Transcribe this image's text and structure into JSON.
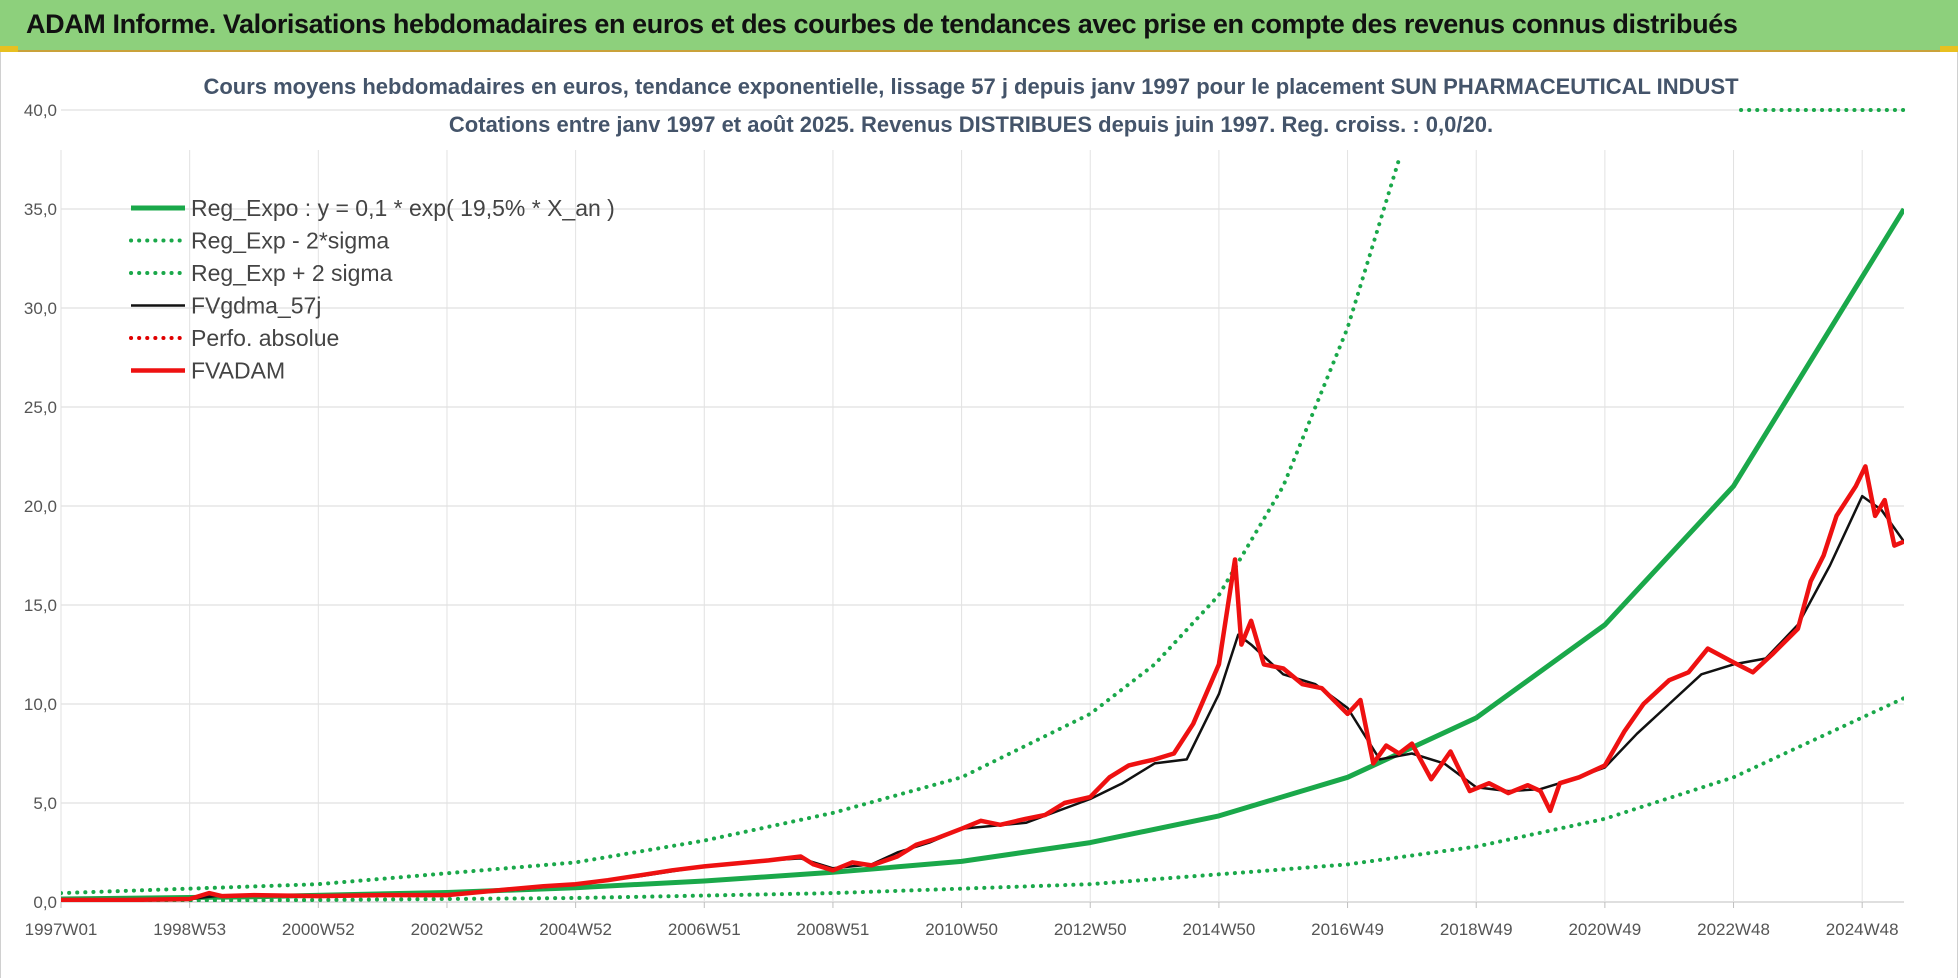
{
  "banner": {
    "title": "ADAM Informe. Valorisations hebdomadaires en euros et des courbes de tendances avec prise en compte des revenus connus distribués"
  },
  "colors": {
    "banner_bg": "#8dd07c",
    "reg_expo": "#1aa84a",
    "reg_sigma": "#1aa84a",
    "fvgdma": "#111111",
    "perfo": "#e00000",
    "fvadam": "#ee1111"
  },
  "chart_data": {
    "type": "line",
    "title": "Cours moyens hebdomadaires en euros, tendance exponentielle, lissage 57 j depuis janv 1997 pour le placement SUN PHARMACEUTICAL INDUST",
    "subtitle": "Cotations entre janv 1997 et août 2025. Revenus DISTRIBUES depuis juin 1997. Reg. croiss. : 0,0/20.",
    "xlabel": "",
    "ylabel": "",
    "ylim": [
      0,
      40
    ],
    "xlim": [
      1997.0,
      2025.65
    ],
    "grid": true,
    "legend_position": "top-left",
    "y_ticks": [
      "0,0",
      "5,0",
      "10,0",
      "15,0",
      "20,0",
      "25,0",
      "30,0",
      "35,0",
      "40,0"
    ],
    "x_ticks": [
      "1997W01",
      "1998W53",
      "2000W52",
      "2002W52",
      "2004W52",
      "2006W51",
      "2008W51",
      "2010W50",
      "2012W50",
      "2014W50",
      "2016W49",
      "2018W49",
      "2020W49",
      "2022W48",
      "2024W48"
    ],
    "x_tick_years": [
      1997.0,
      1999.0,
      2001.0,
      2003.0,
      2005.0,
      2007.0,
      2009.0,
      2011.0,
      2013.0,
      2015.0,
      2017.0,
      2019.0,
      2021.0,
      2023.0,
      2025.0
    ],
    "series": [
      {
        "name": "Reg_Expo : y = 0,1 * exp( 19,5% *  X_an )",
        "style": "solid-thick",
        "color": "#1aa84a",
        "x": [
          1997,
          2000,
          2003,
          2005,
          2007,
          2009,
          2011,
          2013,
          2015,
          2017,
          2019,
          2021,
          2023,
          2025.65
        ],
        "y": [
          0.15,
          0.27,
          0.48,
          0.72,
          1.06,
          1.5,
          2.05,
          3.0,
          4.35,
          6.3,
          9.3,
          14.0,
          21.0,
          35.0
        ]
      },
      {
        "name": "Reg_Exp - 2*sigma",
        "style": "dotted",
        "color": "#1aa84a",
        "x": [
          1997,
          2001,
          2005,
          2009,
          2013,
          2017,
          2019,
          2021,
          2023,
          2025.65
        ],
        "y": [
          0.05,
          0.1,
          0.2,
          0.45,
          0.9,
          1.9,
          2.8,
          4.2,
          6.3,
          10.3
        ]
      },
      {
        "name": "Reg_Exp + 2 sigma",
        "style": "dotted",
        "color": "#1aa84a",
        "x": [
          1997,
          2001,
          2005,
          2007,
          2009,
          2011,
          2013,
          2014,
          2015,
          2016,
          2017,
          2017.8
        ],
        "y": [
          0.45,
          0.9,
          2.0,
          3.1,
          4.5,
          6.3,
          9.5,
          12.0,
          15.5,
          21.0,
          29.0,
          37.5
        ]
      },
      {
        "name": "FVgdma_57j",
        "style": "solid",
        "color": "#111111",
        "x": [
          1997,
          1998,
          1999.0,
          1999.4,
          2000,
          2001,
          2002,
          2003.0,
          2004,
          2005,
          2006,
          2007,
          2008,
          2008.5,
          2009.0,
          2009.6,
          2010,
          2010.5,
          2011,
          2012,
          2013,
          2013.5,
          2014,
          2014.5,
          2015.0,
          2015.3,
          2015.5,
          2016,
          2016.5,
          2017.0,
          2017.5,
          2018.0,
          2018.5,
          2019.0,
          2019.5,
          2020.0,
          2020.5,
          2021.0,
          2021.5,
          2022.0,
          2022.5,
          2023.0,
          2023.5,
          2024.0,
          2024.5,
          2025.0,
          2025.3,
          2025.65
        ],
        "y": [
          0.1,
          0.1,
          0.15,
          0.3,
          0.35,
          0.3,
          0.35,
          0.35,
          0.6,
          0.9,
          1.3,
          1.8,
          2.1,
          2.2,
          1.7,
          1.9,
          2.5,
          3.0,
          3.7,
          4.0,
          5.2,
          6.0,
          7.0,
          7.2,
          10.5,
          13.5,
          13.0,
          11.5,
          11.0,
          9.8,
          7.2,
          7.5,
          7.0,
          5.8,
          5.6,
          5.7,
          6.2,
          6.8,
          8.5,
          10.0,
          11.5,
          12.0,
          12.3,
          14.0,
          17.0,
          20.5,
          19.8,
          18.2
        ]
      },
      {
        "name": "Perfo. absolue",
        "style": "dotted",
        "color": "#e00000",
        "x": [],
        "y": []
      },
      {
        "name": "FVADAM",
        "style": "solid-thick",
        "color": "#ee1111",
        "x": [
          1997,
          1998,
          1999.0,
          1999.3,
          1999.5,
          2000,
          2001,
          2002,
          2003.0,
          2003.5,
          2004,
          2004.5,
          2005,
          2005.5,
          2006,
          2006.5,
          2007,
          2007.5,
          2008,
          2008.5,
          2008.7,
          2009.0,
          2009.3,
          2009.6,
          2010.0,
          2010.3,
          2010.6,
          2011.0,
          2011.3,
          2011.6,
          2012.0,
          2012.3,
          2012.6,
          2013.0,
          2013.3,
          2013.6,
          2014.0,
          2014.3,
          2014.6,
          2015.0,
          2015.15,
          2015.25,
          2015.35,
          2015.5,
          2015.7,
          2016.0,
          2016.3,
          2016.6,
          2017.0,
          2017.2,
          2017.4,
          2017.6,
          2017.8,
          2018.0,
          2018.3,
          2018.6,
          2018.9,
          2019.2,
          2019.5,
          2019.8,
          2020.0,
          2020.15,
          2020.3,
          2020.6,
          2021.0,
          2021.3,
          2021.6,
          2022.0,
          2022.3,
          2022.6,
          2023.0,
          2023.3,
          2023.6,
          2024.0,
          2024.2,
          2024.4,
          2024.6,
          2024.9,
          2025.05,
          2025.2,
          2025.35,
          2025.5,
          2025.65
        ],
        "y": [
          0.1,
          0.1,
          0.15,
          0.45,
          0.3,
          0.35,
          0.3,
          0.35,
          0.35,
          0.5,
          0.65,
          0.8,
          0.9,
          1.1,
          1.35,
          1.6,
          1.8,
          1.95,
          2.1,
          2.3,
          1.9,
          1.6,
          2.0,
          1.85,
          2.3,
          2.9,
          3.2,
          3.7,
          4.1,
          3.9,
          4.2,
          4.4,
          5.0,
          5.3,
          6.3,
          6.9,
          7.2,
          7.5,
          9.0,
          12.0,
          15.2,
          17.3,
          13.0,
          14.2,
          12.0,
          11.8,
          11.0,
          10.8,
          9.5,
          10.2,
          7.0,
          7.9,
          7.5,
          8.0,
          6.2,
          7.6,
          5.6,
          6.0,
          5.5,
          5.9,
          5.6,
          4.6,
          6.0,
          6.3,
          6.9,
          8.6,
          10.0,
          11.2,
          11.6,
          12.8,
          12.1,
          11.6,
          12.5,
          13.8,
          16.2,
          17.5,
          19.5,
          21.0,
          22.0,
          19.5,
          20.3,
          18.0,
          18.2
        ]
      }
    ]
  }
}
